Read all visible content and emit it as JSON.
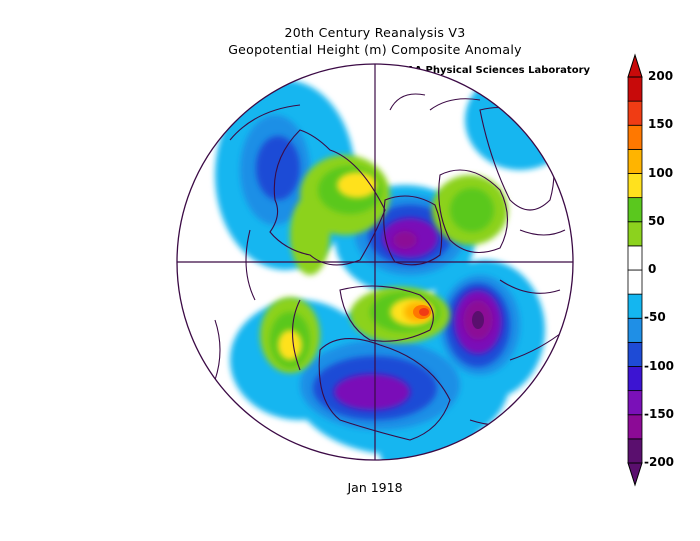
{
  "title_line1": "20th Century Reanalysis V3",
  "title_line2": "Geopotential Height (m) Composite Anomaly",
  "credit": "NOAA Physical Sciences Laboratory",
  "caption": "Jan 1918",
  "colorbar": {
    "labels": [
      "200",
      "150",
      "100",
      "50",
      "0",
      "-50",
      "-100",
      "-150",
      "-200"
    ],
    "colors": [
      "#5a0f6e",
      "#8c0a96",
      "#7a10b8",
      "#3c14d2",
      "#1e4bd6",
      "#1f8fe6",
      "#14b6f0",
      "#ffffff",
      "#ffffff",
      "#8cd21e",
      "#5ac81e",
      "#ffe11e",
      "#ffb400",
      "#ff7800",
      "#f03c14",
      "#c80a0a"
    ]
  }
}
